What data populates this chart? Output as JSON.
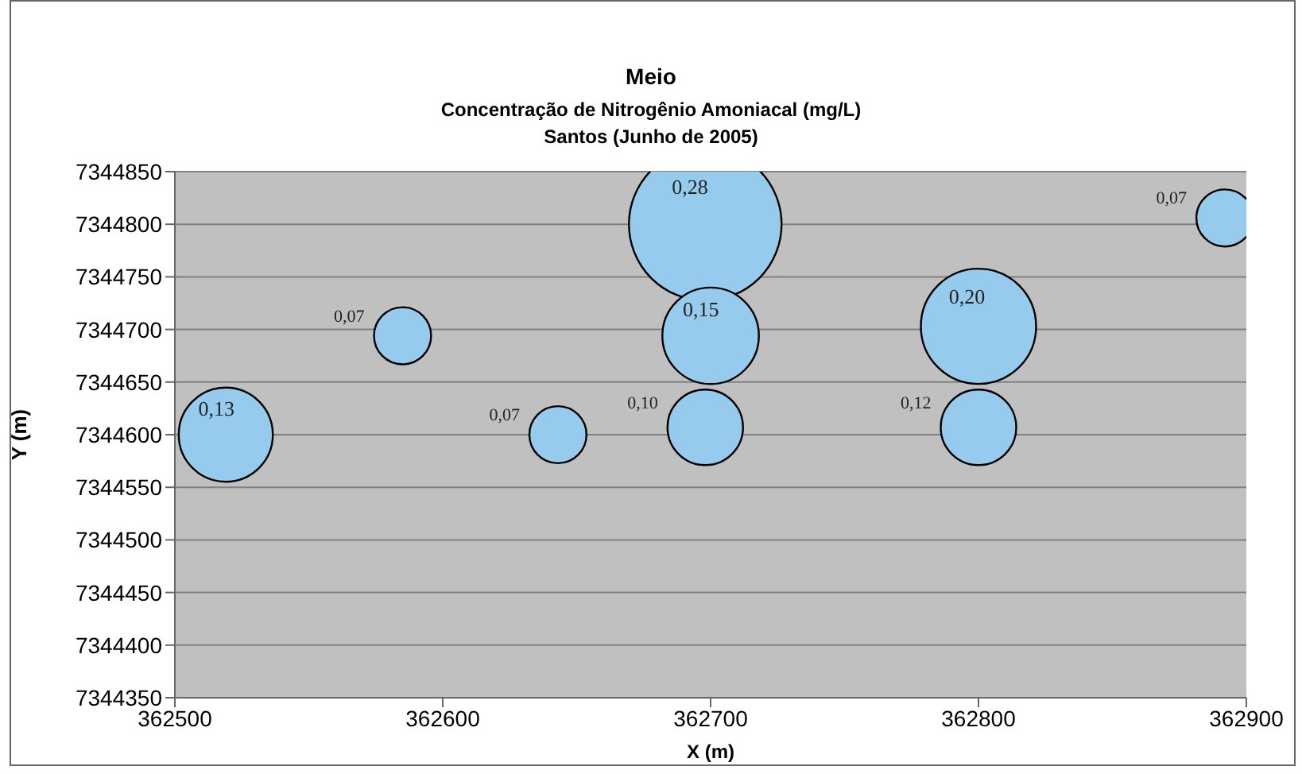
{
  "chart_data": {
    "type": "bubble",
    "title": "Meio",
    "subtitle": "Concentração de Nitrogênio Amoniacal (mg/L)\nSantos (Junho de 2005)",
    "xlabel": "X (m)",
    "ylabel": "Y (m)",
    "x": [
      362519,
      362585,
      362643,
      362698,
      362700,
      362698,
      362800,
      362800,
      362892
    ],
    "values": [
      7344600,
      7344694,
      7344600,
      7344800,
      7344694,
      7344607,
      7344703,
      7344607,
      7344806
    ],
    "sizes": [
      0.38,
      0.14,
      0.14,
      1,
      0.4,
      0.245,
      0.57,
      0.245,
      0.14
    ],
    "annotations": [
      {
        "text": "0,13",
        "x": 362519,
        "y": 7344600
      },
      {
        "text": "0,07",
        "x": 362585,
        "y": 7344694
      },
      {
        "text": "0,07",
        "x": 362643,
        "y": 7344600
      },
      {
        "text": "0,28",
        "x": 362698,
        "y": 7344800
      },
      {
        "text": "0,15",
        "x": 362700,
        "y": 7344694
      },
      {
        "text": "0,10",
        "x": 362698,
        "y": 7344607
      },
      {
        "text": "0,20",
        "x": 362800,
        "y": 7344703
      },
      {
        "text": "0,12",
        "x": 362800,
        "y": 7344607
      },
      {
        "text": "0,07",
        "x": 362892,
        "y": 7344806
      }
    ],
    "color": "#97cbee",
    "xlim": [
      362500,
      362900
    ],
    "xticks": [
      362500,
      362600,
      362700,
      362800,
      362900
    ],
    "ylim": [
      7344350,
      7344850
    ],
    "yticks": [
      7344350,
      7344400,
      7344450,
      7344500,
      7344550,
      7344600,
      7344650,
      7344700,
      7344750,
      7344800,
      7344850
    ],
    "grid": "y"
  }
}
